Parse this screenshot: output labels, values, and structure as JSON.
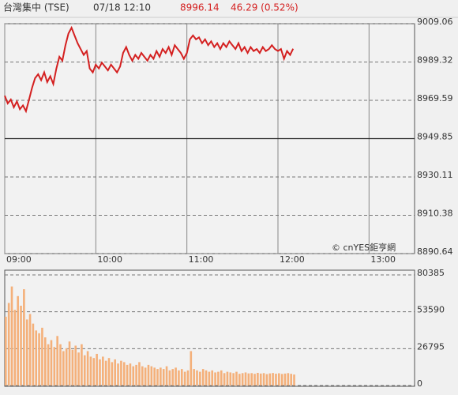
{
  "header": {
    "title": "台灣集中 (TSE)",
    "time": "07/18 12:10",
    "price": 8996.14,
    "change": "46.29 (0.52%)"
  },
  "chart_data": [
    {
      "type": "line",
      "watermark": "© cnYES鉅亨網",
      "color": "#d42020",
      "x": [
        "09:00",
        "09:02",
        "09:04",
        "09:06",
        "09:08",
        "09:10",
        "09:12",
        "09:14",
        "09:16",
        "09:18",
        "09:20",
        "09:22",
        "09:24",
        "09:26",
        "09:28",
        "09:30",
        "09:32",
        "09:34",
        "09:36",
        "09:38",
        "09:40",
        "09:42",
        "09:44",
        "09:46",
        "09:48",
        "09:50",
        "09:52",
        "09:54",
        "09:56",
        "09:58",
        "10:00",
        "10:02",
        "10:04",
        "10:06",
        "10:08",
        "10:10",
        "10:12",
        "10:14",
        "10:16",
        "10:18",
        "10:20",
        "10:22",
        "10:24",
        "10:26",
        "10:28",
        "10:30",
        "10:32",
        "10:34",
        "10:36",
        "10:38",
        "10:40",
        "10:42",
        "10:44",
        "10:46",
        "10:48",
        "10:50",
        "10:52",
        "10:54",
        "10:56",
        "10:58",
        "11:00",
        "11:02",
        "11:04",
        "11:06",
        "11:08",
        "11:10",
        "11:12",
        "11:14",
        "11:16",
        "11:18",
        "11:20",
        "11:22",
        "11:24",
        "11:26",
        "11:28",
        "11:30",
        "11:32",
        "11:34",
        "11:36",
        "11:38",
        "11:40",
        "11:42",
        "11:44",
        "11:46",
        "11:48",
        "11:50",
        "11:52",
        "11:54",
        "11:56",
        "11:58",
        "12:00",
        "12:02",
        "12:04",
        "12:06",
        "12:08",
        "12:10"
      ],
      "values": [
        8972,
        8968,
        8970,
        8966,
        8969,
        8965,
        8967,
        8964,
        8970,
        8976,
        8981,
        8983,
        8980,
        8984,
        8979,
        8982,
        8978,
        8986,
        8992,
        8990,
        8998,
        9004,
        9007,
        9003,
        8999,
        8996,
        8993,
        8995,
        8986,
        8984,
        8988,
        8986,
        8989,
        8987,
        8985,
        8988,
        8986,
        8984,
        8987,
        8994,
        8997,
        8993,
        8990,
        8993,
        8991,
        8994,
        8992,
        8990,
        8993,
        8991,
        8995,
        8992,
        8996,
        8994,
        8997,
        8993,
        8998,
        8996,
        8994,
        8991,
        8994,
        9001,
        9003,
        9001,
        9002,
        8999,
        9001,
        8998,
        9000,
        8997,
        8999,
        8996,
        8999,
        8997,
        9000,
        8998,
        8996,
        8999,
        8995,
        8997,
        8994,
        8997,
        8995,
        8996,
        8994,
        8997,
        8995,
        8996,
        8998,
        8996,
        8995,
        8996,
        8991,
        8995,
        8993,
        8996.14
      ],
      "xlim": [
        "09:00",
        "13:30"
      ],
      "xticks": [
        "09:00",
        "10:00",
        "11:00",
        "12:00",
        "13:00"
      ],
      "ylim": [
        8890.64,
        9009.06
      ],
      "yticks": [
        9009.06,
        8989.32,
        8969.59,
        8949.85,
        8930.11,
        8910.38,
        8890.64
      ],
      "baseline": 8949.85,
      "grid": true
    },
    {
      "type": "bar",
      "color": "#f4b07a",
      "x": [
        "09:00",
        "09:02",
        "09:04",
        "09:06",
        "09:08",
        "09:10",
        "09:12",
        "09:14",
        "09:16",
        "09:18",
        "09:20",
        "09:22",
        "09:24",
        "09:26",
        "09:28",
        "09:30",
        "09:32",
        "09:34",
        "09:36",
        "09:38",
        "09:40",
        "09:42",
        "09:44",
        "09:46",
        "09:48",
        "09:50",
        "09:52",
        "09:54",
        "09:56",
        "09:58",
        "10:00",
        "10:02",
        "10:04",
        "10:06",
        "10:08",
        "10:10",
        "10:12",
        "10:14",
        "10:16",
        "10:18",
        "10:20",
        "10:22",
        "10:24",
        "10:26",
        "10:28",
        "10:30",
        "10:32",
        "10:34",
        "10:36",
        "10:38",
        "10:40",
        "10:42",
        "10:44",
        "10:46",
        "10:48",
        "10:50",
        "10:52",
        "10:54",
        "10:56",
        "10:58",
        "11:00",
        "11:02",
        "11:04",
        "11:06",
        "11:08",
        "11:10",
        "11:12",
        "11:14",
        "11:16",
        "11:18",
        "11:20",
        "11:22",
        "11:24",
        "11:26",
        "11:28",
        "11:30",
        "11:32",
        "11:34",
        "11:36",
        "11:38",
        "11:40",
        "11:42",
        "11:44",
        "11:46",
        "11:48",
        "11:50",
        "11:52",
        "11:54",
        "11:56",
        "11:58",
        "12:00",
        "12:02",
        "12:04",
        "12:06",
        "12:08",
        "12:10"
      ],
      "values": [
        50000,
        60000,
        72000,
        55000,
        65000,
        58000,
        70000,
        48000,
        52000,
        45000,
        40000,
        38000,
        42000,
        35000,
        30000,
        33000,
        28000,
        36000,
        30000,
        25000,
        27000,
        32000,
        26000,
        29000,
        24000,
        30000,
        22000,
        25000,
        21000,
        20000,
        23000,
        19000,
        21000,
        18000,
        20000,
        17000,
        19000,
        16000,
        18000,
        17000,
        15000,
        16000,
        14000,
        15000,
        17000,
        14000,
        13000,
        15000,
        14000,
        13000,
        12000,
        13000,
        12000,
        14000,
        11000,
        12000,
        13000,
        11000,
        12000,
        10000,
        11000,
        25000,
        12000,
        11000,
        10000,
        12000,
        11000,
        10000,
        11000,
        9500,
        10000,
        11000,
        9000,
        10000,
        9500,
        9000,
        10000,
        8500,
        9000,
        9500,
        8800,
        9000,
        8500,
        9200,
        8700,
        9000,
        8300,
        8800,
        9100,
        8600,
        8900,
        8400,
        8700,
        9000,
        8500,
        8000
      ],
      "xlim": [
        "09:00",
        "13:30"
      ],
      "ylim": [
        0,
        80385
      ],
      "yticks": [
        80385,
        53590,
        26795,
        0
      ],
      "grid": true
    }
  ]
}
